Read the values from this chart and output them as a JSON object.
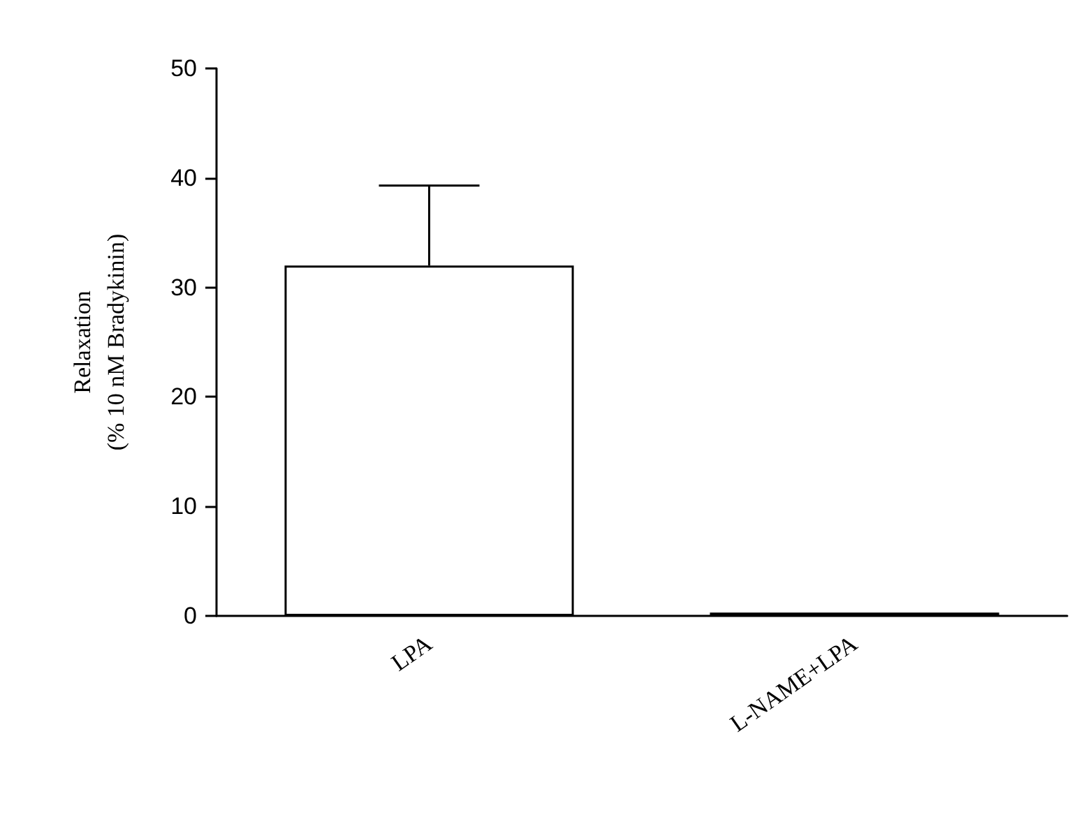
{
  "chart_data": {
    "type": "bar",
    "ylabel": "Relaxation\n(% 10 nM Bradykinin)",
    "categories": [
      "LPA",
      "L-NAME+LPA"
    ],
    "values": [
      32,
      0.3
    ],
    "errors": [
      [
        32,
        39.3
      ],
      null
    ],
    "color": "#ffffff",
    "ylim": [
      0,
      50
    ],
    "yticks": [
      0,
      10,
      20,
      30,
      40,
      50
    ],
    "grid": false
  }
}
